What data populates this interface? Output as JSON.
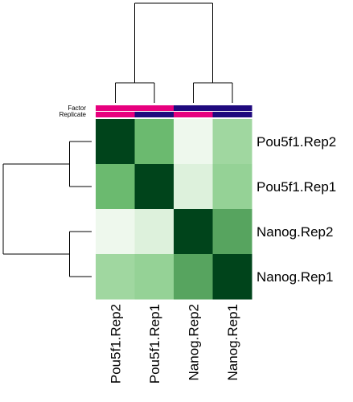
{
  "chart_data": {
    "type": "heatmap",
    "title": "",
    "rows": [
      "Pou5f1.Rep2",
      "Pou5f1.Rep1",
      "Nanog.Rep2",
      "Nanog.Rep1"
    ],
    "columns": [
      "Pou5f1.Rep2",
      "Pou5f1.Rep1",
      "Nanog.Rep2",
      "Nanog.Rep1"
    ],
    "values": [
      [
        1.0,
        0.63,
        0.04,
        0.4
      ],
      [
        0.63,
        1.0,
        0.12,
        0.45
      ],
      [
        0.04,
        0.12,
        1.0,
        0.7
      ],
      [
        0.4,
        0.45,
        0.7,
        1.0
      ]
    ],
    "color_scale": {
      "palette": "Greens",
      "low_color": "#f7fcf5",
      "high_color": "#00441b"
    },
    "column_annotations": [
      {
        "label": "Factor",
        "values": [
          "Pou5f1",
          "Pou5f1",
          "Nanog",
          "Nanog"
        ],
        "colors": {
          "Pou5f1": "#e7007e",
          "Nanog": "#1f0a7e"
        }
      },
      {
        "label": "Replicate",
        "values": [
          "Rep2",
          "Rep1",
          "Rep2",
          "Rep1"
        ],
        "colors": {
          "Rep2": "#e7007e",
          "Rep1": "#1f0a7e"
        }
      }
    ],
    "row_dendrogram": [
      {
        "merge": [
          "Pou5f1.Rep2",
          "Pou5f1.Rep1"
        ],
        "height": 0.25
      },
      {
        "merge": [
          "Nanog.Rep2",
          "Nanog.Rep1"
        ],
        "height": 0.25
      },
      {
        "merge": [
          "Pou5f1 cluster",
          "Nanog cluster"
        ],
        "height": 1.0
      }
    ],
    "column_dendrogram": [
      {
        "merge": [
          "Pou5f1.Rep2",
          "Pou5f1.Rep1"
        ],
        "height": 0.2
      },
      {
        "merge": [
          "Nanog.Rep2",
          "Nanog.Rep1"
        ],
        "height": 0.2
      },
      {
        "merge": [
          "Pou5f1 cluster",
          "Nanog cluster"
        ],
        "height": 1.0
      }
    ]
  }
}
